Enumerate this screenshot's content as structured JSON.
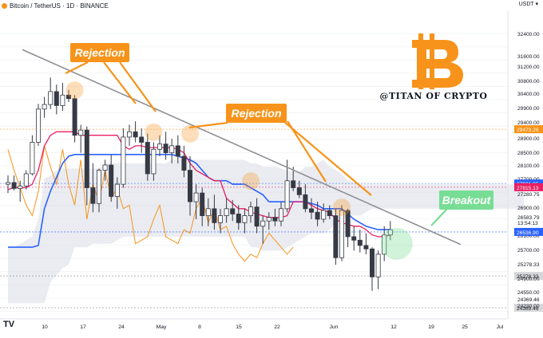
{
  "header": {
    "symbol_label": "Bitcoin / TetherUS · 1D · BINANCE",
    "currency": "USDT",
    "watermark": "@TITAN OF CRYPTO",
    "tv_logo": "TV"
  },
  "colors": {
    "up_candle": "#ffffff",
    "down_candle": "#363a45",
    "baseline": "#2962ff",
    "conversion": "#e91e63",
    "lagging": "#f7931a",
    "cloud": "#d8dde5",
    "trendline": "#8f9095",
    "annotation": "#f7931a",
    "breakout": "#77dd94",
    "bitcoin_logo": "#f7931a"
  },
  "annotations": [
    {
      "text": "Rejection"
    },
    {
      "text": "Rejection"
    },
    {
      "text": "Breakout"
    }
  ],
  "chart_data": {
    "type": "candlestick",
    "title": "",
    "xlabel": "",
    "ylabel": "",
    "x_tick_labels": [
      "10",
      "17",
      "24",
      "May",
      "8",
      "15",
      "22",
      "Jun",
      "12",
      "19",
      "25",
      "Jul"
    ],
    "y_tick_labels": [
      "32400.00",
      "31600.00",
      "31200.00",
      "30800.00",
      "30400.00",
      "29900.00",
      "29400.00",
      "28900.00",
      "28500.00",
      "28100.00",
      "27700.00",
      "27280.75",
      "26900.00",
      "26583.79",
      "13:54:13",
      "26100.00",
      "25700.00",
      "25278.33",
      "24900.00",
      "24550.00",
      "24369.46",
      "24230.00"
    ],
    "ylim": [
      24050,
      32850
    ],
    "price_labels": [
      {
        "value": 29473.26,
        "label": "29473.26",
        "color": "#f7931a"
      },
      {
        "value": 27921.95,
        "label": "27921.95",
        "color": "#2962ff"
      },
      {
        "value": 27815.13,
        "label": "27815.13",
        "color": "#e91e63"
      },
      {
        "value": 26536.9,
        "label": "26536.90",
        "color": "#2962ff"
      },
      {
        "value": 25278.33,
        "label": "25278.33",
        "color": "#787b86"
      },
      {
        "value": 24369.46,
        "label": "24369.46",
        "color": "#787b86"
      }
    ],
    "candles": [
      [
        27900,
        28150,
        27650,
        27950
      ],
      [
        27950,
        28150,
        27720,
        27780
      ],
      [
        27780,
        28000,
        27400,
        27850
      ],
      [
        27850,
        28300,
        27750,
        28200
      ],
      [
        28200,
        29300,
        28150,
        29100
      ],
      [
        29100,
        30200,
        29000,
        30050
      ],
      [
        30050,
        30400,
        29800,
        30180
      ],
      [
        30180,
        30950,
        30050,
        30550
      ],
      [
        30550,
        30750,
        29900,
        30150
      ],
      [
        30150,
        30800,
        30000,
        30450
      ],
      [
        30450,
        30600,
        30250,
        30350
      ],
      [
        30350,
        30450,
        29100,
        29300
      ],
      [
        29300,
        29600,
        28800,
        29450
      ],
      [
        29450,
        29550,
        27300,
        27800
      ],
      [
        27800,
        28500,
        27100,
        27350
      ],
      [
        27350,
        28350,
        27100,
        28300
      ],
      [
        28300,
        28600,
        28000,
        28450
      ],
      [
        28450,
        28750,
        27400,
        27550
      ],
      [
        27550,
        28100,
        27200,
        27900
      ],
      [
        27900,
        29500,
        27800,
        29250
      ],
      [
        29250,
        29600,
        29000,
        29400
      ],
      [
        29400,
        29700,
        29100,
        29250
      ],
      [
        29250,
        29500,
        28800,
        29100
      ],
      [
        29100,
        29350,
        28000,
        28200
      ],
      [
        28200,
        29100,
        28000,
        28900
      ],
      [
        28900,
        29300,
        28700,
        29050
      ],
      [
        29050,
        29400,
        28600,
        28800
      ],
      [
        28800,
        29200,
        28500,
        29000
      ],
      [
        29000,
        29300,
        28500,
        28700
      ],
      [
        28700,
        29000,
        28100,
        28300
      ],
      [
        28300,
        28700,
        27000,
        27400
      ],
      [
        27400,
        27900,
        26900,
        27650
      ],
      [
        27650,
        27800,
        26700,
        27000
      ],
      [
        27000,
        27500,
        26700,
        27200
      ],
      [
        27200,
        27600,
        26600,
        26800
      ],
      [
        26800,
        27200,
        26500,
        27000
      ],
      [
        27000,
        27500,
        26800,
        27200
      ],
      [
        27200,
        27450,
        26850,
        27050
      ],
      [
        27050,
        27300,
        26600,
        26800
      ],
      [
        26800,
        27200,
        26500,
        27000
      ],
      [
        27000,
        27400,
        26800,
        27250
      ],
      [
        27250,
        27500,
        26500,
        26700
      ],
      [
        26700,
        27000,
        26200,
        26850
      ],
      [
        26850,
        27100,
        26600,
        26950
      ],
      [
        26950,
        27200,
        26700,
        26850
      ],
      [
        26850,
        27400,
        26700,
        27200
      ],
      [
        27200,
        28600,
        27100,
        28000
      ],
      [
        28000,
        28400,
        27700,
        27800
      ],
      [
        27800,
        28000,
        27500,
        27600
      ],
      [
        27600,
        27900,
        27100,
        27200
      ],
      [
        27200,
        27500,
        26900,
        27100
      ],
      [
        27100,
        27400,
        26700,
        26900
      ],
      [
        26900,
        27350,
        26800,
        27150
      ],
      [
        27150,
        27300,
        26900,
        27000
      ],
      [
        27000,
        27200,
        25600,
        25800
      ],
      [
        25800,
        27300,
        25700,
        27150
      ],
      [
        27150,
        27200,
        26100,
        26400
      ],
      [
        26400,
        26700,
        26000,
        26300
      ],
      [
        26300,
        26600,
        25950,
        26150
      ],
      [
        26150,
        26500,
        25900,
        26050
      ],
      [
        26050,
        26100,
        24850,
        25250
      ],
      [
        25250,
        26000,
        24900,
        25900
      ],
      [
        25900,
        26700,
        25700,
        26450
      ],
      [
        26450,
        26850,
        26300,
        26600
      ]
    ],
    "baseline_line": [
      26100,
      26100,
      26100,
      26100,
      26100,
      26150,
      27200,
      27700,
      28100,
      28500,
      28700,
      28750,
      28750,
      28750,
      28750,
      28750,
      28750,
      28750,
      28750,
      28750,
      28750,
      28750,
      28750,
      28750,
      28750,
      28750,
      28750,
      28750,
      28700,
      28650,
      28600,
      28500,
      28300,
      28100,
      28000,
      28000,
      28000,
      27900,
      27900,
      27900,
      27800,
      27700,
      27600,
      27400,
      27400,
      27400,
      27400,
      27400,
      27400,
      27400,
      27350,
      27300,
      27200,
      27200,
      27200,
      27200,
      27050,
      26900,
      26800,
      26700,
      26650,
      26600,
      26600,
      26600
    ],
    "conversion_line": [
      27750,
      27800,
      27800,
      27800,
      27900,
      28300,
      29000,
      29300,
      29400,
      29400,
      29400,
      29400,
      29300,
      29300,
      29300,
      29300,
      29300,
      29300,
      29300,
      29000,
      28900,
      29000,
      29000,
      28950,
      28950,
      28950,
      28950,
      28950,
      28900,
      28800,
      28500,
      28300,
      28200,
      28100,
      28000,
      28000,
      27500,
      27350,
      27200,
      27200,
      27100,
      27050,
      27000,
      26950,
      26950,
      26950,
      27000,
      27400,
      27400,
      27400,
      27300,
      27200,
      27150,
      27100,
      26900,
      26800,
      26750,
      26700,
      26700,
      26600,
      26450,
      26400,
      26400,
      26450
    ],
    "lagging_line": [
      28900,
      28300,
      27800,
      27300,
      27000,
      27700,
      29000,
      28400,
      27900,
      28900,
      27900,
      27300,
      28600,
      26900,
      27900,
      27400,
      28300,
      27500,
      27800,
      27200,
      27300,
      26200,
      26300,
      26400,
      26900,
      27300,
      26400,
      26300,
      26200,
      26600,
      26500,
      27200,
      27500,
      26800,
      27200,
      26600,
      26700,
      26200,
      25900,
      25700,
      25900,
      25800,
      26200,
      26500,
      26300,
      26100,
      25900,
      26100
    ],
    "cloud_upper": [
      26100,
      26100,
      26200,
      26300,
      26400,
      26900,
      28050,
      28150,
      28300,
      28350,
      28350,
      28350,
      28350,
      28350,
      28350,
      28350,
      28500,
      28500,
      28500,
      28500,
      28500,
      28500,
      28500,
      28500,
      28500,
      28500,
      28500,
      28600,
      28600,
      28600,
      28600,
      28600,
      28600,
      28600,
      28600,
      28600,
      28600,
      28600,
      28600,
      28600,
      28500,
      28500,
      28400,
      28400,
      28400,
      28350,
      28300,
      28250,
      28250,
      28400,
      28400,
      28500,
      28600,
      28400,
      28300,
      28200,
      28000,
      27950,
      27900,
      27900,
      27900,
      27900,
      27900,
      27900,
      27900,
      27900,
      27900,
      27900,
      27900,
      27900,
      27900,
      27900,
      27900,
      27900,
      27900,
      27900,
      27900,
      27900,
      27900,
      27900,
      27900,
      27900,
      27900,
      27900,
      27900,
      27900
    ],
    "cloud_lower": [
      24500,
      24500,
      24500,
      24500,
      24500,
      24500,
      24500,
      25100,
      25300,
      25500,
      25600,
      26100,
      26100,
      26100,
      26200,
      26200,
      26200,
      26200,
      26300,
      26400,
      26400,
      26400,
      26400,
      26400,
      26400,
      26400,
      26400,
      26400,
      26400,
      26400,
      26400,
      26400,
      26400,
      26400,
      26400,
      26400,
      26400,
      26400,
      26400,
      26400,
      26100,
      26100,
      26000,
      26000,
      26000,
      26000,
      26100,
      26200,
      26300,
      26400,
      26500,
      26500,
      26500,
      26600,
      26800,
      26900,
      27000,
      27000,
      27000,
      27100,
      27200,
      27200,
      27200,
      27200,
      27200,
      27200,
      27200,
      27200,
      27200,
      27200,
      27200,
      27200,
      27200,
      27200,
      27200,
      27200,
      27200,
      27200,
      27200,
      27200,
      27200,
      27200,
      27200,
      27200,
      27200,
      27200
    ],
    "trendline": [
      {
        "x": 0,
        "y": 31750
      },
      {
        "x": 63,
        "y": 25950
      }
    ]
  }
}
